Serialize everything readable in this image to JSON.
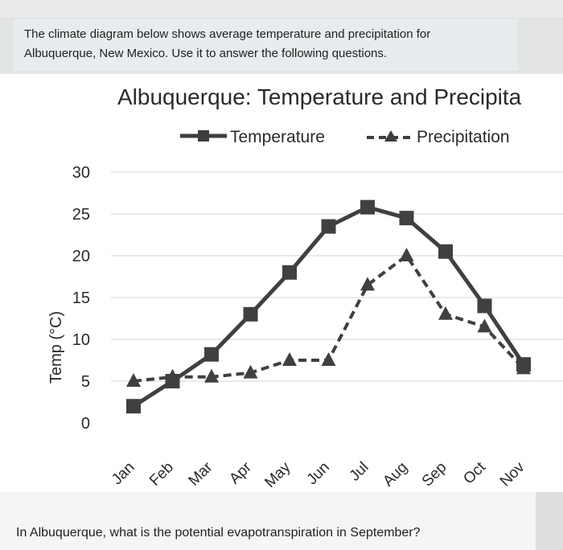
{
  "intro": {
    "line1": "The climate diagram below shows average temperature and precipitation for",
    "line2": "Albuquerque, New Mexico.  Use it to answer the following questions."
  },
  "question": "In Albuquerque, what is the potential evapotranspiration in September?",
  "chart_data": {
    "type": "line",
    "title": "Albuquerque: Temperature and Precipita",
    "ylabel": "Temp (°C)",
    "xlabel": "",
    "ylim": [
      0,
      30
    ],
    "yticks": [
      0,
      5,
      10,
      15,
      20,
      25,
      30
    ],
    "categories": [
      "Jan",
      "Feb",
      "Mar",
      "Apr",
      "May",
      "Jun",
      "Jul",
      "Aug",
      "Sep",
      "Oct",
      "Nov"
    ],
    "grid": true,
    "legend_position": "top",
    "series": [
      {
        "name": "Temperature",
        "style": "solid",
        "marker": "square",
        "color": "#404040",
        "values": [
          2,
          5,
          8.2,
          13,
          18,
          23.5,
          25.8,
          24.5,
          20.5,
          14,
          7
        ]
      },
      {
        "name": "Precipitation",
        "style": "dashed",
        "marker": "triangle",
        "color": "#404040",
        "values": [
          5,
          5.5,
          5.5,
          6,
          7.5,
          7.5,
          16.5,
          20,
          13,
          11.5,
          6.5
        ]
      }
    ]
  }
}
